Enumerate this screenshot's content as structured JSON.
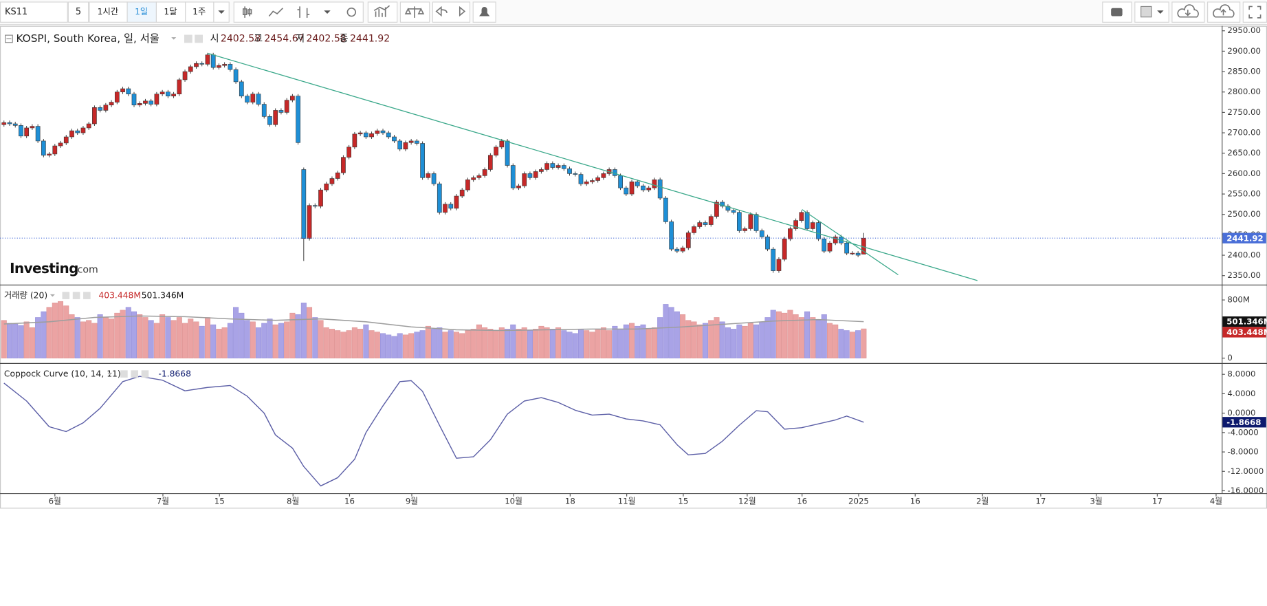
{
  "toolbar": {
    "symbol": "KS11",
    "interval": "5",
    "buttons": [
      "1시간",
      "1일",
      "1달",
      "1주"
    ],
    "active": 1
  },
  "logo": [
    "Investing",
    ".com"
  ],
  "chart_data": [
    {
      "type": "candlestick",
      "title": "KOSPI, South Korea, 일, 서울",
      "ohlc_labels": [
        "시",
        "고",
        "저",
        "종"
      ],
      "up_color": "#c62828",
      "down_color": "#1e8fd6",
      "last_color": "#4a6fd8",
      "trend_color": "#3aa88a",
      "open": [
        2720,
        2725,
        2722,
        2718,
        2692,
        2712,
        2716,
        2680,
        2645,
        2648,
        2668,
        2675,
        2690,
        2705,
        2700,
        2712,
        2722,
        2762,
        2755,
        2768,
        2775,
        2800,
        2808,
        2795,
        2768,
        2772,
        2778,
        2770,
        2795,
        2800,
        2790,
        2795,
        2830,
        2850,
        2862,
        2870,
        2868,
        2891,
        2860,
        2865,
        2868,
        2855,
        2825,
        2790,
        2775,
        2795,
        2770,
        2740,
        2720,
        2755,
        2750,
        2780,
        2790,
        2610,
        2441,
        2522,
        2520,
        2560,
        2575,
        2588,
        2602,
        2640,
        2665,
        2697,
        2700,
        2690,
        2698,
        2705,
        2700,
        2690,
        2680,
        2660,
        2676,
        2680,
        2674,
        2590,
        2600,
        2575,
        2505,
        2525,
        2515,
        2545,
        2560,
        2585,
        2590,
        2595,
        2610,
        2645,
        2665,
        2680,
        2620,
        2565,
        2570,
        2600,
        2590,
        2605,
        2610,
        2625,
        2615,
        2620,
        2612,
        2600,
        2598,
        2575,
        2580,
        2583,
        2590,
        2600,
        2610,
        2595,
        2565,
        2550,
        2580,
        2570,
        2560,
        2565,
        2585,
        2540,
        2482,
        2415,
        2410,
        2418,
        2455,
        2470,
        2480,
        2475,
        2495,
        2530,
        2520,
        2510,
        2505,
        2460,
        2465,
        2500,
        2460,
        2445,
        2415,
        2362,
        2390,
        2440,
        2465,
        2485,
        2505,
        2465,
        2480,
        2440,
        2410,
        2430,
        2445,
        2430,
        2405,
        2405,
        2402.58
      ],
      "high": [
        2730,
        2730,
        2727,
        2723,
        2717,
        2721,
        2721,
        2685,
        2653,
        2673,
        2680,
        2695,
        2710,
        2710,
        2717,
        2727,
        2767,
        2767,
        2773,
        2780,
        2805,
        2813,
        2813,
        2800,
        2777,
        2783,
        2783,
        2800,
        2805,
        2805,
        2800,
        2835,
        2855,
        2867,
        2875,
        2875,
        2896,
        2896,
        2870,
        2873,
        2873,
        2860,
        2830,
        2795,
        2800,
        2800,
        2775,
        2745,
        2760,
        2760,
        2785,
        2795,
        2795,
        2615,
        2527,
        2527,
        2565,
        2580,
        2593,
        2607,
        2645,
        2670,
        2702,
        2705,
        2705,
        2703,
        2710,
        2710,
        2705,
        2695,
        2685,
        2681,
        2685,
        2685,
        2679,
        2605,
        2605,
        2580,
        2530,
        2530,
        2550,
        2565,
        2590,
        2595,
        2600,
        2615,
        2650,
        2670,
        2685,
        2685,
        2625,
        2575,
        2605,
        2605,
        2610,
        2615,
        2630,
        2630,
        2625,
        2625,
        2617,
        2605,
        2603,
        2585,
        2588,
        2595,
        2605,
        2615,
        2615,
        2600,
        2570,
        2585,
        2585,
        2575,
        2570,
        2590,
        2590,
        2545,
        2487,
        2420,
        2423,
        2460,
        2475,
        2485,
        2485,
        2500,
        2535,
        2535,
        2525,
        2515,
        2510,
        2470,
        2505,
        2505,
        2465,
        2450,
        2420,
        2395,
        2445,
        2470,
        2490,
        2510,
        2510,
        2485,
        2485,
        2445,
        2435,
        2450,
        2450,
        2435,
        2410,
        2410,
        2454.67
      ],
      "low": [
        2715,
        2717,
        2713,
        2687,
        2687,
        2707,
        2675,
        2640,
        2640,
        2643,
        2663,
        2670,
        2685,
        2695,
        2695,
        2707,
        2717,
        2750,
        2750,
        2763,
        2770,
        2795,
        2790,
        2763,
        2763,
        2767,
        2765,
        2765,
        2790,
        2785,
        2785,
        2790,
        2825,
        2845,
        2857,
        2863,
        2863,
        2855,
        2855,
        2860,
        2850,
        2820,
        2785,
        2770,
        2770,
        2765,
        2735,
        2715,
        2715,
        2745,
        2745,
        2775,
        2671,
        2386,
        2436,
        2515,
        2515,
        2555,
        2570,
        2583,
        2597,
        2635,
        2660,
        2692,
        2685,
        2685,
        2693,
        2695,
        2685,
        2675,
        2655,
        2655,
        2671,
        2669,
        2585,
        2585,
        2570,
        2500,
        2500,
        2510,
        2510,
        2540,
        2555,
        2580,
        2585,
        2590,
        2605,
        2640,
        2660,
        2615,
        2560,
        2560,
        2565,
        2585,
        2585,
        2600,
        2605,
        2610,
        2610,
        2607,
        2595,
        2593,
        2570,
        2570,
        2575,
        2578,
        2585,
        2595,
        2590,
        2560,
        2545,
        2545,
        2565,
        2555,
        2555,
        2560,
        2535,
        2477,
        2410,
        2405,
        2405,
        2413,
        2450,
        2465,
        2470,
        2470,
        2490,
        2515,
        2505,
        2500,
        2455,
        2455,
        2460,
        2455,
        2440,
        2410,
        2357,
        2357,
        2385,
        2435,
        2460,
        2480,
        2460,
        2460,
        2435,
        2405,
        2405,
        2425,
        2425,
        2400,
        2400,
        2395,
        2402.58
      ],
      "close": [
        2725,
        2722,
        2718,
        2692,
        2712,
        2716,
        2680,
        2645,
        2648,
        2668,
        2675,
        2690,
        2705,
        2700,
        2712,
        2722,
        2762,
        2755,
        2768,
        2775,
        2800,
        2808,
        2795,
        2768,
        2772,
        2778,
        2770,
        2795,
        2800,
        2790,
        2795,
        2830,
        2850,
        2862,
        2870,
        2868,
        2891,
        2860,
        2865,
        2868,
        2855,
        2825,
        2790,
        2775,
        2795,
        2770,
        2740,
        2720,
        2755,
        2750,
        2780,
        2790,
        2676,
        2441,
        2522,
        2520,
        2560,
        2575,
        2588,
        2602,
        2640,
        2665,
        2697,
        2700,
        2690,
        2698,
        2705,
        2700,
        2690,
        2680,
        2660,
        2676,
        2680,
        2674,
        2590,
        2600,
        2575,
        2505,
        2525,
        2515,
        2545,
        2560,
        2585,
        2590,
        2595,
        2610,
        2645,
        2665,
        2680,
        2620,
        2565,
        2570,
        2600,
        2590,
        2605,
        2610,
        2625,
        2615,
        2620,
        2612,
        2600,
        2598,
        2575,
        2580,
        2583,
        2590,
        2600,
        2610,
        2595,
        2565,
        2550,
        2580,
        2570,
        2560,
        2565,
        2585,
        2540,
        2482,
        2415,
        2410,
        2418,
        2455,
        2470,
        2480,
        2475,
        2495,
        2530,
        2520,
        2510,
        2505,
        2460,
        2465,
        2500,
        2460,
        2445,
        2415,
        2362,
        2390,
        2440,
        2465,
        2485,
        2505,
        2465,
        2480,
        2440,
        2410,
        2430,
        2445,
        2430,
        2405,
        2405,
        2400,
        2441.92
      ],
      "trendlines": [
        {
          "x": [
            36.1,
            172.1
          ],
          "y": [
            2894.6,
            2338
          ]
        },
        {
          "x": [
            141.1,
            158.1
          ],
          "y": [
            2512,
            2352
          ]
        }
      ],
      "xlim": [
        -0.7,
        215.3
      ],
      "xticks": [
        {
          "value": 9,
          "label": "6월"
        },
        {
          "value": 28.1,
          "label": "7월"
        },
        {
          "value": 38.1,
          "label": "15"
        },
        {
          "value": 51.1,
          "label": "8월"
        },
        {
          "value": 61.1,
          "label": "16"
        },
        {
          "value": 72.1,
          "label": "9월"
        },
        {
          "value": 90.1,
          "label": "10월"
        },
        {
          "value": 100.1,
          "label": "18"
        },
        {
          "value": 110.1,
          "label": "11월"
        },
        {
          "value": 120.1,
          "label": "15"
        },
        {
          "value": 131.4,
          "label": "12월"
        },
        {
          "value": 141.1,
          "label": "16"
        },
        {
          "value": 151.1,
          "label": "2025"
        },
        {
          "value": 161.1,
          "label": "16"
        },
        {
          "value": 173,
          "label": "2월"
        },
        {
          "value": 183.3,
          "label": "17"
        },
        {
          "value": 193.1,
          "label": "3월"
        },
        {
          "value": 203.9,
          "label": "17"
        },
        {
          "value": 214.3,
          "label": "4월"
        }
      ],
      "ylim": [
        2328,
        2962
      ],
      "yticks": [
        {
          "value": 2350,
          "label": "2350.00"
        },
        {
          "value": 2400,
          "label": "2400.00"
        },
        {
          "value": 2450,
          "label": "2450.00"
        },
        {
          "value": 2500,
          "label": "2500.00"
        },
        {
          "value": 2550,
          "label": "2550.00"
        },
        {
          "value": 2600,
          "label": "2600.00"
        },
        {
          "value": 2650,
          "label": "2650.00"
        },
        {
          "value": 2700,
          "label": "2700.00"
        },
        {
          "value": 2750,
          "label": "2750.00"
        },
        {
          "value": 2800,
          "label": "2800.00"
        },
        {
          "value": 2850,
          "label": "2850.00"
        },
        {
          "value": 2900,
          "label": "2900.00"
        },
        {
          "value": 2950,
          "label": "2950.00"
        }
      ]
    },
    {
      "type": "bar",
      "title": "거래량 (20)",
      "up_color": "#eba3a3",
      "down_color": "#a9a3e6",
      "values": [
        520,
        480,
        470,
        450,
        500,
        420,
        560,
        640,
        700,
        760,
        780,
        720,
        600,
        560,
        500,
        520,
        480,
        600,
        560,
        540,
        620,
        660,
        700,
        640,
        600,
        560,
        520,
        480,
        600,
        560,
        520,
        560,
        480,
        540,
        500,
        440,
        560,
        460,
        400,
        420,
        480,
        700,
        620,
        520,
        500,
        420,
        480,
        540,
        460,
        480,
        500,
        620,
        600,
        760,
        700,
        560,
        520,
        420,
        400,
        380,
        360,
        380,
        420,
        400,
        460,
        380,
        360,
        340,
        320,
        300,
        340,
        320,
        340,
        360,
        380,
        440,
        400,
        420,
        360,
        380,
        360,
        340,
        380,
        400,
        460,
        420,
        400,
        380,
        420,
        400,
        460,
        400,
        420,
        380,
        400,
        440,
        420,
        400,
        420,
        380,
        360,
        340,
        400,
        380,
        360,
        400,
        420,
        380,
        440,
        400,
        460,
        480,
        440,
        460,
        400,
        420,
        560,
        740,
        700,
        640,
        600,
        520,
        500,
        460,
        480,
        520,
        560,
        500,
        420,
        400,
        460,
        440,
        480,
        460,
        500,
        560,
        660,
        640,
        620,
        660,
        600,
        560,
        640,
        560,
        520,
        600,
        480,
        460,
        400,
        380,
        360,
        380,
        403.448
      ],
      "value_labels": [
        null,
        null,
        null,
        null,
        null,
        null,
        null,
        null,
        null,
        null,
        null,
        null,
        null,
        null,
        null,
        null,
        null,
        null,
        null,
        null,
        null,
        null,
        null,
        null,
        null,
        null,
        null,
        null,
        null,
        null,
        null,
        null,
        null,
        null,
        null,
        null,
        null,
        null,
        null,
        null,
        null,
        null,
        null,
        null,
        null,
        null,
        null,
        null,
        null,
        null,
        null,
        null,
        null,
        null,
        null,
        null,
        null,
        null,
        null,
        null,
        null,
        null,
        null,
        null,
        null,
        null,
        null,
        null,
        null,
        null,
        null,
        null,
        null,
        null,
        null,
        null,
        null,
        null,
        null,
        null,
        null,
        null,
        null,
        null,
        null,
        null,
        null,
        null,
        null,
        null,
        null,
        null,
        null,
        null,
        null,
        null,
        null,
        null,
        null,
        null,
        null,
        null,
        null,
        null,
        null,
        null,
        null,
        null,
        null,
        null,
        null,
        null,
        null,
        null,
        null,
        null,
        null,
        null,
        null,
        null,
        null,
        null,
        null,
        null,
        null,
        null,
        null,
        null,
        null,
        null,
        null,
        null,
        null,
        null,
        null,
        null,
        null,
        null,
        null,
        null,
        null,
        null,
        null,
        null,
        null,
        null,
        null,
        null,
        null,
        null,
        null,
        null,
        "403.448M"
      ],
      "series": [
        {
          "color": "#9e9e9e",
          "x": [
            0,
            8,
            16,
            24,
            32,
            40,
            48,
            56,
            64,
            72,
            80,
            88,
            96,
            104,
            112,
            120,
            128,
            136,
            144,
            152
          ],
          "values": [
            470,
            500,
            560,
            580,
            570,
            540,
            520,
            540,
            500,
            430,
            390,
            380,
            390,
            400,
            400,
            430,
            470,
            510,
            530,
            501.346
          ],
          "value_labels": [
            null,
            null,
            null,
            null,
            null,
            null,
            null,
            null,
            null,
            null,
            null,
            null,
            null,
            null,
            null,
            null,
            null,
            null,
            null,
            "501.346M"
          ]
        }
      ],
      "ylim": [
        -56,
        1000
      ],
      "yticks": [
        0,
        {
          "value": 800,
          "label": "800M"
        }
      ]
    },
    {
      "type": "line",
      "title": "Coppock Curve (10, 14, 11)",
      "color": "#5b5ea6",
      "x": [
        0,
        4,
        8,
        11,
        14,
        17,
        21,
        24,
        28,
        32,
        36,
        40,
        43,
        46,
        48,
        51,
        53,
        56,
        59,
        62,
        64,
        67,
        70,
        72,
        74,
        77,
        80,
        83,
        86,
        89,
        92,
        95,
        98,
        101,
        104,
        107,
        110,
        113,
        116,
        119,
        121,
        124,
        127,
        130,
        133,
        135,
        138,
        141,
        144,
        147,
        149,
        152
      ],
      "values": [
        6.2,
        2.5,
        -2.8,
        -3.8,
        -2.0,
        1.0,
        6.5,
        7.6,
        6.8,
        4.6,
        5.3,
        5.7,
        3.5,
        0,
        -4.5,
        -7.2,
        -11,
        -15,
        -13.3,
        -9.5,
        -4,
        1.5,
        6.5,
        6.7,
        4.5,
        -2.5,
        -9.3,
        -9.0,
        -5.5,
        -0.2,
        2.5,
        3.2,
        2.2,
        0.6,
        -0.4,
        -0.2,
        -1.2,
        -1.6,
        -2.4,
        -6.5,
        -8.6,
        -8.3,
        -5.8,
        -2.5,
        0.5,
        0.3,
        -3.3,
        -3.0,
        -2.2,
        -1.4,
        -0.6,
        -1.8668
      ],
      "ylim": [
        -16.5,
        9.83
      ],
      "yticks": [
        {
          "value": 8,
          "label": "8.0000"
        },
        {
          "value": 4,
          "label": "4.0000"
        },
        {
          "value": 0,
          "label": "0.0000"
        },
        {
          "value": -4,
          "label": "-4.0000"
        },
        {
          "value": -8,
          "label": "-8.0000"
        },
        {
          "value": -12,
          "label": "-12.0000"
        },
        {
          "value": -16,
          "label": "-16.0000"
        }
      ]
    }
  ]
}
